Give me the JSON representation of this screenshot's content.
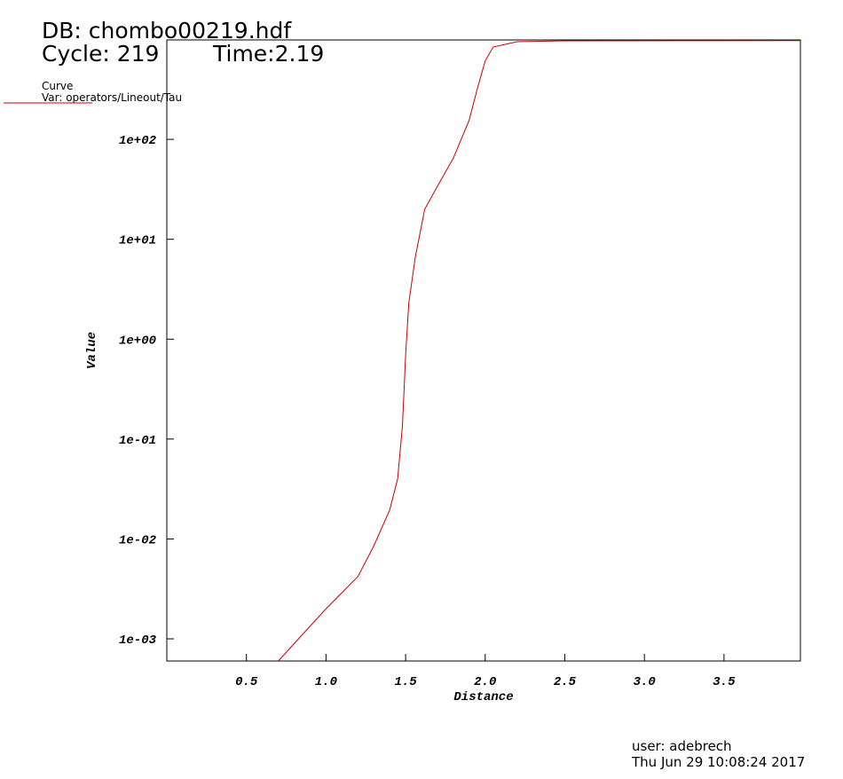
{
  "chart_data": {
    "type": "line",
    "title": "DB: chombo00219.hdf",
    "cycle": "Cycle: 219",
    "time": "Time:2.19",
    "legend_title": "Curve",
    "xlabel": "Distance",
    "ylabel": "Value",
    "user": "user: adebrech",
    "date": "Thu Jun 29 10:08:24 2017",
    "log_y": true,
    "x": [
      0.7,
      1.0,
      1.2,
      1.3,
      1.4,
      1.45,
      1.48,
      1.5,
      1.52,
      1.56,
      1.62,
      1.7,
      1.8,
      1.9,
      1.95,
      2.0,
      2.05,
      2.2,
      2.5,
      3.98
    ],
    "series": [
      {
        "name": "Var: operators/Lineout/Tau",
        "color": "#cc0000",
        "values": [
          0.0006,
          0.002,
          0.0042,
          0.0085,
          0.0195,
          0.04,
          0.135,
          0.69,
          2.3,
          6.5,
          20,
          34,
          65,
          157,
          320,
          610,
          840,
          950,
          970,
          975
        ]
      }
    ],
    "xlim": [
      0,
      3.98
    ],
    "ylim": [
      0.0006,
      990
    ],
    "xticks": [
      0.5,
      {
        "value": 1,
        "label": "1.0"
      },
      1.5,
      {
        "value": 2,
        "label": "2.0"
      },
      2.5,
      {
        "value": 3,
        "label": "3.0"
      },
      3.5
    ],
    "yticks": [
      {
        "value": 0.001,
        "label": "1e-03"
      },
      {
        "value": 0.01,
        "label": "1e-02"
      },
      {
        "value": 0.1,
        "label": "1e-01"
      },
      {
        "value": 1,
        "label": "1e+00"
      },
      {
        "value": 10,
        "label": "1e+01"
      },
      {
        "value": 100,
        "label": "1e+02"
      }
    ]
  }
}
